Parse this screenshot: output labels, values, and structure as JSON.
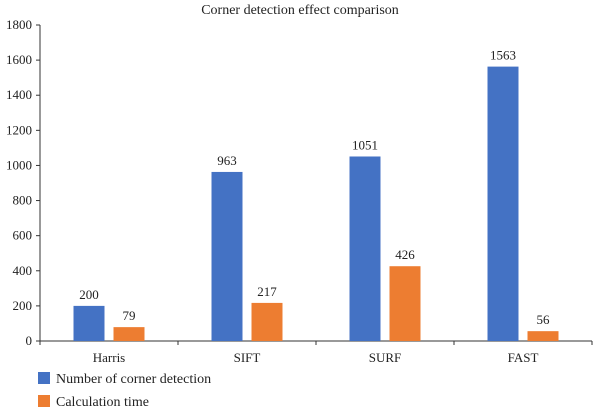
{
  "chart_data": {
    "type": "bar",
    "title": "Corner detection effect comparison",
    "xlabel": "",
    "ylabel": "",
    "categories": [
      "Harris",
      "SIFT",
      "SURF",
      "FAST"
    ],
    "series": [
      {
        "name": "Number of corner detection",
        "values": [
          200,
          963,
          1051,
          1563
        ],
        "color": "#4472C4"
      },
      {
        "name": "Calculation time",
        "values": [
          79,
          217,
          426,
          56
        ],
        "color": "#ED7D31"
      }
    ],
    "ylim": [
      0,
      1800
    ],
    "yticks": [
      0,
      200,
      400,
      600,
      800,
      1000,
      1200,
      1400,
      1600,
      1800
    ],
    "grid": false,
    "legend_position": "bottom-left"
  }
}
